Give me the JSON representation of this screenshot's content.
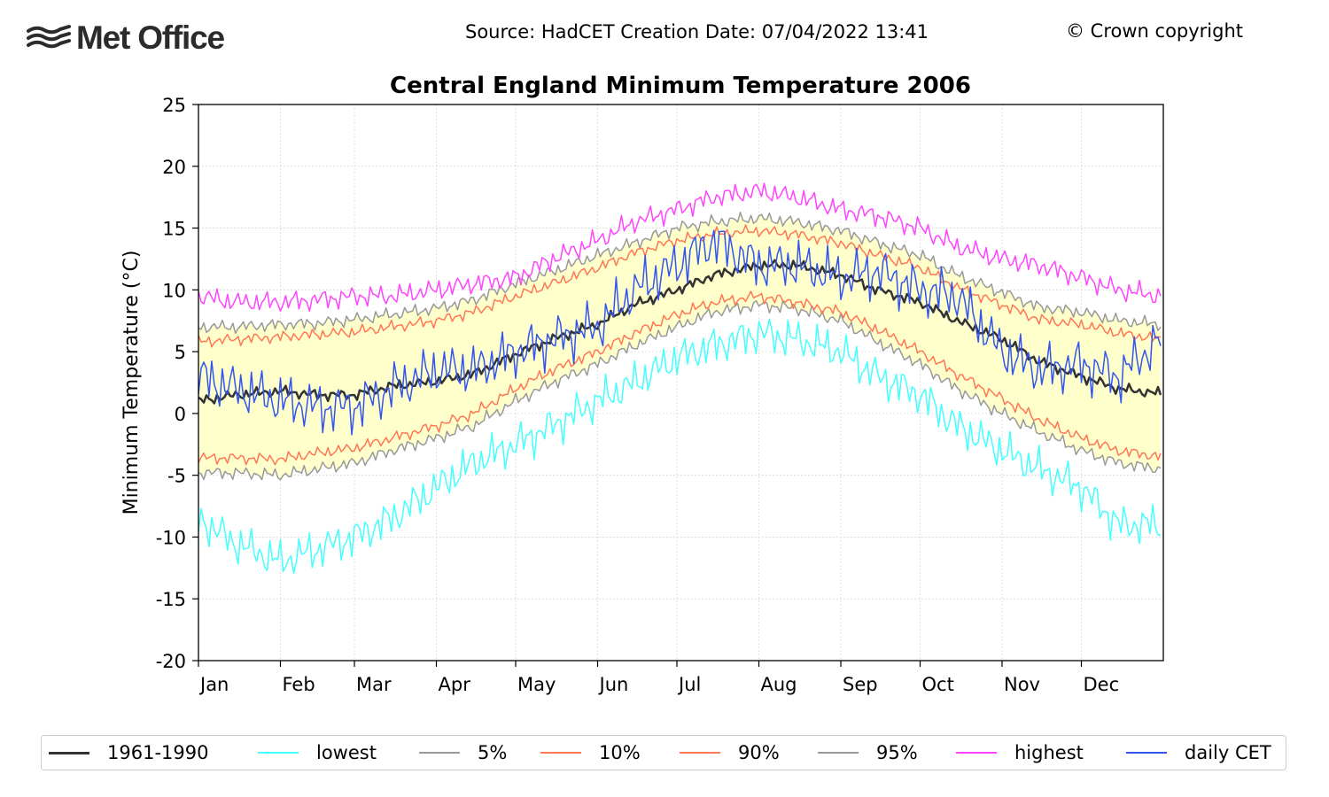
{
  "header": {
    "logo_text": "Met Office",
    "source": "Source: HadCET  Creation Date: 07/04/2022 13:41",
    "copyright": "© Crown copyright"
  },
  "chart_data": {
    "type": "line",
    "title": "Central England Minimum Temperature 2006",
    "xlabel": "",
    "ylabel": "Minimum Temperature (°C)",
    "ylim": [
      -20,
      25
    ],
    "yticks": [
      -20,
      -15,
      -10,
      -5,
      0,
      5,
      10,
      15,
      20,
      25
    ],
    "ytick_labels": [
      "-20",
      "-15",
      "-10",
      "-5",
      "0",
      "5",
      "10",
      "15",
      "20",
      "25"
    ],
    "xlim": [
      1,
      366
    ],
    "xticks": [
      1,
      32,
      60,
      91,
      121,
      152,
      182,
      213,
      244,
      274,
      305,
      335
    ],
    "xtick_labels": [
      "Jan",
      "Feb",
      "Mar",
      "Apr",
      "May",
      "Jun",
      "Jul",
      "Aug",
      "Sep",
      "Oct",
      "Nov",
      "Dec"
    ],
    "grid": true,
    "legend_position": "bottom",
    "band_fill": "#ffffcc",
    "series_anchor_days": [
      1,
      15,
      32,
      46,
      60,
      74,
      91,
      105,
      121,
      135,
      152,
      166,
      182,
      196,
      213,
      227,
      244,
      258,
      274,
      288,
      305,
      319,
      335,
      349,
      365
    ],
    "series": [
      {
        "name": "1961-1990",
        "color": "#333333",
        "width": 2.5,
        "values": [
          1.0,
          1.5,
          1.8,
          1.5,
          1.5,
          2.2,
          2.6,
          3.2,
          4.8,
          6.0,
          7.2,
          8.8,
          10.0,
          11.2,
          12.0,
          12.0,
          11.2,
          10.0,
          9.0,
          7.5,
          6.0,
          4.2,
          3.0,
          2.0,
          1.6
        ]
      },
      {
        "name": "lowest",
        "color": "#44ffff",
        "width": 1.5,
        "values": [
          -8.5,
          -10.5,
          -12.0,
          -11.0,
          -10.0,
          -8.5,
          -6.0,
          -4.0,
          -2.5,
          -1.0,
          1.0,
          2.5,
          4.5,
          5.5,
          6.5,
          6.0,
          5.0,
          3.0,
          1.5,
          -1.0,
          -3.0,
          -4.5,
          -6.0,
          -9.0,
          -9.0
        ]
      },
      {
        "name": "5%",
        "color": "#999999",
        "width": 1.5,
        "values": [
          -4.8,
          -4.8,
          -5.0,
          -4.5,
          -4.0,
          -3.0,
          -2.0,
          -1.0,
          1.0,
          2.5,
          4.0,
          5.5,
          7.0,
          8.2,
          8.8,
          8.5,
          7.5,
          5.8,
          4.0,
          2.0,
          0.0,
          -1.5,
          -3.0,
          -4.0,
          -4.5
        ]
      },
      {
        "name": "10%",
        "color": "#ff7755",
        "width": 1.5,
        "values": [
          -3.6,
          -3.6,
          -3.7,
          -3.2,
          -2.8,
          -2.0,
          -1.0,
          0.0,
          2.0,
          3.5,
          5.0,
          6.5,
          8.0,
          9.0,
          9.5,
          9.0,
          8.2,
          6.8,
          5.0,
          3.2,
          1.2,
          -0.5,
          -2.0,
          -3.0,
          -3.5
        ]
      },
      {
        "name": "90%",
        "color": "#ff7755",
        "width": 1.5,
        "values": [
          5.8,
          6.0,
          6.2,
          6.4,
          6.6,
          7.0,
          7.5,
          8.2,
          9.5,
          10.5,
          11.8,
          13.0,
          14.0,
          14.5,
          14.8,
          14.5,
          13.8,
          12.8,
          11.8,
          10.2,
          8.8,
          7.6,
          7.2,
          6.5,
          6.0
        ]
      },
      {
        "name": "95%",
        "color": "#999999",
        "width": 1.5,
        "values": [
          7.0,
          7.0,
          7.2,
          7.3,
          7.6,
          8.0,
          8.5,
          9.2,
          10.5,
          11.5,
          12.8,
          13.8,
          15.0,
          15.5,
          15.8,
          15.5,
          14.8,
          13.8,
          12.8,
          11.2,
          9.8,
          8.6,
          8.2,
          7.5,
          7.2
        ]
      },
      {
        "name": "highest",
        "color": "#ff44ff",
        "width": 1.5,
        "values": [
          9.5,
          9.0,
          9.0,
          9.2,
          9.5,
          9.5,
          10.0,
          10.5,
          11.0,
          12.5,
          14.0,
          15.5,
          16.5,
          17.5,
          18.0,
          17.5,
          16.5,
          16.0,
          15.0,
          13.5,
          12.5,
          12.0,
          11.0,
          10.0,
          9.5
        ]
      },
      {
        "name": "daily CET",
        "color": "#3355ee",
        "width": 1.5,
        "values": [
          3.0,
          2.0,
          1.0,
          0.5,
          0.5,
          2.0,
          3.5,
          3.5,
          5.0,
          6.0,
          7.0,
          10.0,
          12.0,
          14.0,
          12.0,
          12.0,
          11.0,
          11.5,
          10.0,
          9.5,
          5.0,
          3.5,
          4.0,
          3.0,
          6.0
        ]
      }
    ]
  }
}
